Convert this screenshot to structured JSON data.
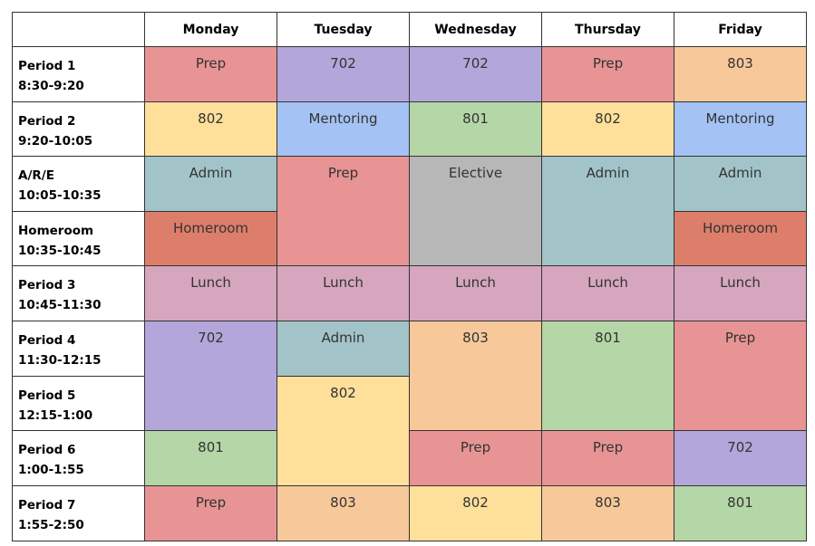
{
  "colors": {
    "prep": "#e89494",
    "702": "#b3a6da",
    "803": "#f7c89a",
    "802": "#ffe09a",
    "801": "#b5d6a7",
    "mentoring": "#a4c2f4",
    "admin": "#a2c4c9",
    "elective": "#b7b7b7",
    "homeroom": "#dd7e6b",
    "lunch": "#d5a6bd"
  },
  "header": {
    "corner": "",
    "days": [
      "Monday",
      "Tuesday",
      "Wednesday",
      "Thursday",
      "Friday"
    ]
  },
  "periods": [
    {
      "name": "Period 1",
      "time": "8:30-9:20"
    },
    {
      "name": "Period 2",
      "time": "9:20-10:05"
    },
    {
      "name": "A/R/E",
      "time": "10:05-10:35"
    },
    {
      "name": "Homeroom",
      "time": "10:35-10:45"
    },
    {
      "name": "Period 3",
      "time": "10:45-11:30"
    },
    {
      "name": "Period 4",
      "time": "11:30-12:15"
    },
    {
      "name": "Period 5",
      "time": "12:15-1:00"
    },
    {
      "name": "Period 6",
      "time": "1:00-1:55"
    },
    {
      "name": "Period 7",
      "time": "1:55-2:50"
    }
  ],
  "slots": [
    {
      "day": "Monday",
      "periods": [
        "Period 1"
      ],
      "label": "Prep",
      "kind": "prep"
    },
    {
      "day": "Tuesday",
      "periods": [
        "Period 1"
      ],
      "label": "702",
      "kind": "702"
    },
    {
      "day": "Wednesday",
      "periods": [
        "Period 1"
      ],
      "label": "702",
      "kind": "702"
    },
    {
      "day": "Thursday",
      "periods": [
        "Period 1"
      ],
      "label": "Prep",
      "kind": "prep"
    },
    {
      "day": "Friday",
      "periods": [
        "Period 1"
      ],
      "label": "803",
      "kind": "803"
    },
    {
      "day": "Monday",
      "periods": [
        "Period 2"
      ],
      "label": "802",
      "kind": "802"
    },
    {
      "day": "Tuesday",
      "periods": [
        "Period 2"
      ],
      "label": "Mentoring",
      "kind": "mentoring"
    },
    {
      "day": "Wednesday",
      "periods": [
        "Period 2"
      ],
      "label": "801",
      "kind": "801"
    },
    {
      "day": "Thursday",
      "periods": [
        "Period 2"
      ],
      "label": "802",
      "kind": "802"
    },
    {
      "day": "Friday",
      "periods": [
        "Period 2"
      ],
      "label": "Mentoring",
      "kind": "mentoring"
    },
    {
      "day": "Monday",
      "periods": [
        "A/R/E"
      ],
      "label": "Admin",
      "kind": "admin"
    },
    {
      "day": "Tuesday",
      "periods": [
        "A/R/E",
        "Homeroom"
      ],
      "label": "Prep",
      "kind": "prep"
    },
    {
      "day": "Wednesday",
      "periods": [
        "A/R/E",
        "Homeroom"
      ],
      "label": "Elective",
      "kind": "elective"
    },
    {
      "day": "Thursday",
      "periods": [
        "A/R/E",
        "Homeroom"
      ],
      "label": "Admin",
      "kind": "admin"
    },
    {
      "day": "Friday",
      "periods": [
        "A/R/E"
      ],
      "label": "Admin",
      "kind": "admin"
    },
    {
      "day": "Monday",
      "periods": [
        "Homeroom"
      ],
      "label": "Homeroom",
      "kind": "homeroom"
    },
    {
      "day": "Friday",
      "periods": [
        "Homeroom"
      ],
      "label": "Homeroom",
      "kind": "homeroom"
    },
    {
      "day": "Monday",
      "periods": [
        "Period 3"
      ],
      "label": "Lunch",
      "kind": "lunch"
    },
    {
      "day": "Tuesday",
      "periods": [
        "Period 3"
      ],
      "label": "Lunch",
      "kind": "lunch"
    },
    {
      "day": "Wednesday",
      "periods": [
        "Period 3"
      ],
      "label": "Lunch",
      "kind": "lunch"
    },
    {
      "day": "Thursday",
      "periods": [
        "Period 3"
      ],
      "label": "Lunch",
      "kind": "lunch"
    },
    {
      "day": "Friday",
      "periods": [
        "Period 3"
      ],
      "label": "Lunch",
      "kind": "lunch"
    },
    {
      "day": "Monday",
      "periods": [
        "Period 4",
        "Period 5"
      ],
      "label": "702",
      "kind": "702"
    },
    {
      "day": "Tuesday",
      "periods": [
        "Period 4"
      ],
      "label": "Admin",
      "kind": "admin"
    },
    {
      "day": "Wednesday",
      "periods": [
        "Period 4",
        "Period 5"
      ],
      "label": "803",
      "kind": "803"
    },
    {
      "day": "Thursday",
      "periods": [
        "Period 4",
        "Period 5"
      ],
      "label": "801",
      "kind": "801"
    },
    {
      "day": "Friday",
      "periods": [
        "Period 4",
        "Period 5"
      ],
      "label": "Prep",
      "kind": "prep"
    },
    {
      "day": "Tuesday",
      "periods": [
        "Period 5",
        "Period 6"
      ],
      "label": "802",
      "kind": "802"
    },
    {
      "day": "Monday",
      "periods": [
        "Period 6"
      ],
      "label": "801",
      "kind": "801"
    },
    {
      "day": "Wednesday",
      "periods": [
        "Period 6"
      ],
      "label": "Prep",
      "kind": "prep"
    },
    {
      "day": "Thursday",
      "periods": [
        "Period 6"
      ],
      "label": "Prep",
      "kind": "prep"
    },
    {
      "day": "Friday",
      "periods": [
        "Period 6"
      ],
      "label": "702",
      "kind": "702"
    },
    {
      "day": "Monday",
      "periods": [
        "Period 7"
      ],
      "label": "Prep",
      "kind": "prep"
    },
    {
      "day": "Tuesday",
      "periods": [
        "Period 7"
      ],
      "label": "803",
      "kind": "803"
    },
    {
      "day": "Wednesday",
      "periods": [
        "Period 7"
      ],
      "label": "802",
      "kind": "802"
    },
    {
      "day": "Thursday",
      "periods": [
        "Period 7"
      ],
      "label": "803",
      "kind": "803"
    },
    {
      "day": "Friday",
      "periods": [
        "Period 7"
      ],
      "label": "801",
      "kind": "801"
    }
  ]
}
